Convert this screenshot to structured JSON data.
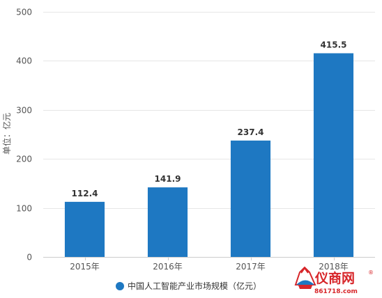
{
  "chart_data": {
    "type": "bar",
    "categories": [
      "2015年",
      "2016年",
      "2017年",
      "2018年"
    ],
    "series": [
      {
        "name": "中国人工智能产业市场规模（亿元）",
        "values": [
          112.4,
          141.9,
          237.4,
          415.5
        ],
        "color": "#1e78c2"
      }
    ],
    "data_labels": [
      "112.4",
      "141.9",
      "237.4",
      "415.5"
    ],
    "ylabel": "单位：亿元",
    "xlabel": "",
    "ylim": [
      0,
      500
    ],
    "yticks": [
      0,
      100,
      200,
      300,
      400,
      500
    ],
    "grid": true,
    "legend_position": "bottom-center"
  },
  "watermark": {
    "brand": "仪商网",
    "registered_mark": "®",
    "url": "861718.com",
    "color": "#d7262a"
  }
}
